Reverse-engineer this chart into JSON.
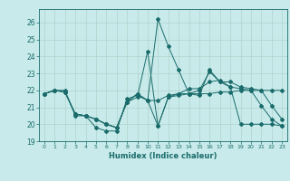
{
  "xlabel": "Humidex (Indice chaleur)",
  "xlim": [
    -0.5,
    23.5
  ],
  "ylim": [
    19,
    26.8
  ],
  "yticks": [
    19,
    20,
    21,
    22,
    23,
    24,
    25,
    26
  ],
  "xticks": [
    0,
    1,
    2,
    3,
    4,
    5,
    6,
    7,
    8,
    9,
    10,
    11,
    12,
    13,
    14,
    15,
    16,
    17,
    18,
    19,
    20,
    21,
    22,
    23
  ],
  "bg_color": "#c8eaea",
  "grid_color": "#b0d4cc",
  "line_color": "#1a6b6b",
  "series": [
    [
      21.8,
      22.0,
      22.0,
      20.5,
      20.5,
      19.8,
      19.6,
      19.6,
      21.5,
      21.7,
      21.4,
      19.9,
      21.6,
      21.7,
      21.8,
      22.0,
      23.1,
      22.5,
      22.2,
      20.0,
      20.0,
      20.0,
      20.0,
      19.9
    ],
    [
      21.8,
      22.0,
      21.9,
      20.6,
      20.5,
      20.3,
      20.0,
      19.8,
      21.3,
      21.6,
      24.3,
      19.9,
      21.6,
      21.8,
      22.1,
      22.1,
      22.5,
      22.6,
      22.2,
      22.1,
      22.0,
      21.1,
      20.3,
      19.9
    ],
    [
      21.8,
      22.0,
      21.9,
      20.6,
      20.5,
      20.3,
      20.0,
      19.8,
      21.3,
      21.8,
      21.4,
      26.2,
      24.6,
      23.2,
      21.8,
      21.7,
      23.2,
      22.5,
      22.5,
      22.2,
      22.1,
      22.0,
      21.1,
      20.3
    ],
    [
      21.8,
      22.0,
      21.9,
      20.6,
      20.5,
      20.3,
      20.0,
      19.8,
      21.3,
      21.8,
      21.4,
      21.4,
      21.7,
      21.8,
      21.8,
      21.8,
      21.8,
      21.9,
      21.9,
      22.0,
      22.0,
      22.0,
      22.0,
      22.0
    ]
  ]
}
